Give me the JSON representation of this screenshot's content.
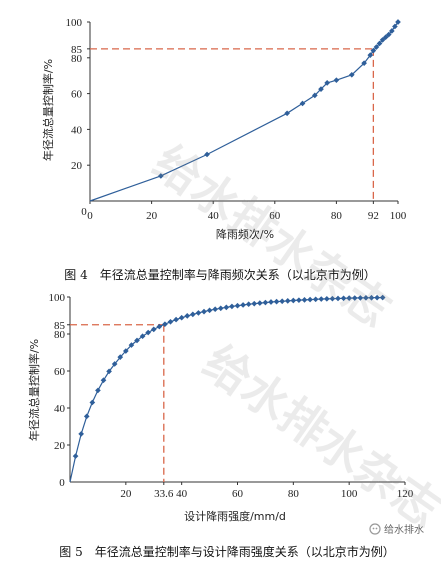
{
  "watermark": "给水排水杂志",
  "logo_text": "给水排水",
  "chart_data": [
    {
      "type": "line",
      "caption": "图 4　年径流总量控制率与降雨频次关系（以北京市为例）",
      "xlabel": "降雨频次/%",
      "ylabel": "年径流总量控制率/%",
      "xlim": [
        0,
        100
      ],
      "ylim": [
        0,
        100
      ],
      "x_ticks": [
        "0",
        "20",
        "40",
        "60",
        "80",
        "92",
        "100"
      ],
      "x_tick_values": [
        0,
        20,
        40,
        60,
        80,
        92,
        100
      ],
      "y_ticks": [
        "20",
        "40",
        "60",
        "80",
        "85",
        "100"
      ],
      "y_tick_values": [
        20,
        40,
        60,
        80,
        85,
        100
      ],
      "origin_label": "0",
      "series_color": "#2f5f9a",
      "guide_color": "#d9674a",
      "guide": {
        "x": 92,
        "y": 85
      },
      "series": [
        {
          "x": [
            0,
            23,
            38,
            64,
            69,
            73,
            75,
            77,
            80,
            85,
            89,
            91,
            92,
            93,
            94,
            95,
            96,
            97,
            98,
            99,
            100
          ],
          "y": [
            0,
            14,
            26,
            49,
            54.5,
            59,
            62.5,
            66,
            67.5,
            70.5,
            77,
            81.5,
            84,
            86,
            88,
            90,
            91.5,
            93,
            95,
            97.5,
            100
          ],
          "markers": [
            [
              23,
              14
            ],
            [
              38,
              26
            ],
            [
              64,
              49
            ],
            [
              69,
              54.5
            ],
            [
              73,
              59
            ],
            [
              75,
              62.5
            ],
            [
              77,
              66
            ],
            [
              80,
              67.5
            ],
            [
              85,
              70.5
            ],
            [
              89,
              77
            ],
            [
              91,
              81.5
            ],
            [
              92,
              84
            ],
            [
              93,
              86
            ],
            [
              94,
              88
            ],
            [
              95,
              90
            ],
            [
              96,
              91.5
            ],
            [
              97,
              93
            ],
            [
              98,
              95
            ],
            [
              99,
              97.5
            ],
            [
              100,
              100
            ]
          ]
        }
      ]
    },
    {
      "type": "line",
      "caption": "图 5　年径流总量控制率与设计降雨强度关系（以北京市为例）",
      "xlabel": "设计降雨强度/mm/d",
      "ylabel": "年径流总量控制率/%",
      "xlim": [
        0,
        120
      ],
      "ylim": [
        0,
        100
      ],
      "x_ticks": [
        "20",
        "33.6",
        "40",
        "60",
        "80",
        "100",
        "120"
      ],
      "x_tick_values": [
        20,
        33.6,
        40,
        60,
        80,
        100,
        120
      ],
      "y_ticks": [
        "20",
        "40",
        "60",
        "80",
        "85",
        "100"
      ],
      "y_tick_values": [
        20,
        40,
        60,
        80,
        85,
        100
      ],
      "origin_label": "0",
      "series_color": "#2f5f9a",
      "guide_color": "#d9674a",
      "guide": {
        "x": 33.6,
        "y": 85
      },
      "series": [
        {
          "x": [
            0,
            2,
            4,
            6,
            8,
            10,
            12,
            14,
            16,
            18,
            20,
            22,
            24,
            26,
            28,
            30,
            32,
            34,
            36,
            38,
            40,
            42,
            44,
            46,
            48,
            50,
            52,
            54,
            56,
            58,
            60,
            62,
            64,
            66,
            68,
            70,
            72,
            74,
            76,
            78,
            80,
            82,
            84,
            86,
            88,
            90,
            92,
            94,
            96,
            98,
            100,
            102,
            104,
            106,
            108,
            110,
            112
          ],
          "y": [
            0,
            14,
            26,
            35.5,
            43,
            49.5,
            55,
            59.8,
            63.8,
            67.5,
            70.8,
            74,
            76.5,
            78.8,
            80.8,
            82.5,
            84,
            85.3,
            86.6,
            87.8,
            88.8,
            89.8,
            90.6,
            91.4,
            92.1,
            92.8,
            93.4,
            93.9,
            94.4,
            94.9,
            95.3,
            95.7,
            96.1,
            96.4,
            96.7,
            97,
            97.3,
            97.5,
            97.7,
            97.9,
            98.1,
            98.3,
            98.45,
            98.6,
            98.75,
            98.9,
            99,
            99.1,
            99.2,
            99.3,
            99.4,
            99.45,
            99.5,
            99.55,
            99.6,
            99.65,
            99.7
          ]
        }
      ]
    }
  ]
}
